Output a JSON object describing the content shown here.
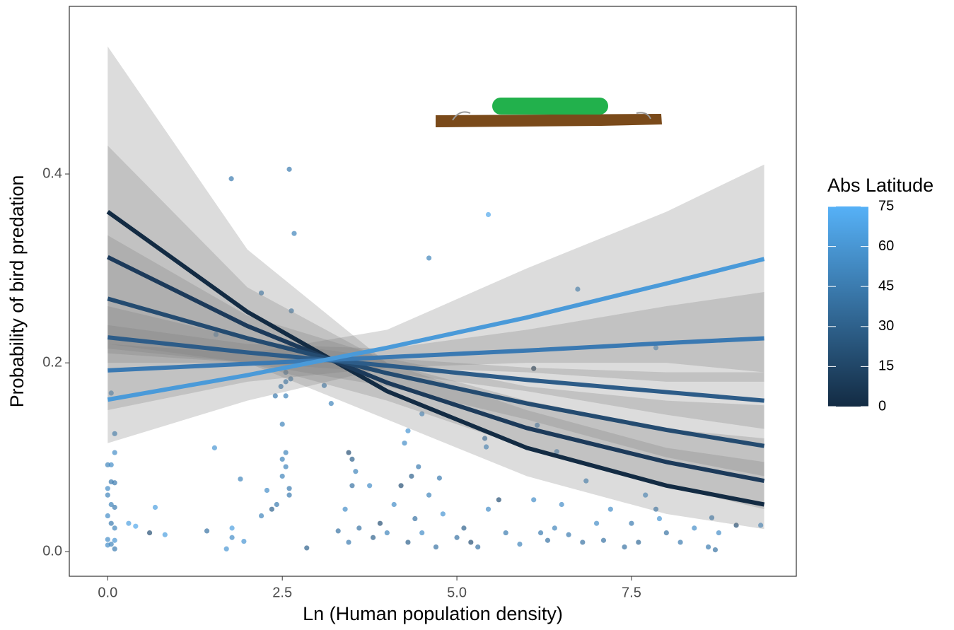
{
  "chart_data": {
    "type": "scatter",
    "x_label": "Ln (Human population density)",
    "y_label": "Probability of bird predation",
    "xlim": [
      -0.55,
      9.86
    ],
    "xticks": [
      {
        "value": 0,
        "label": "0.0"
      },
      2.5,
      {
        "value": 5,
        "label": "5.0"
      },
      7.5
    ],
    "ylim": [
      -0.026,
      0.5775
    ],
    "yticks": [
      {
        "value": 0,
        "label": "0.0"
      },
      0.2,
      0.4
    ],
    "color_scale": {
      "title": "Abs Latitude",
      "low": "#132B43",
      "high": "#56B1F7",
      "lim": [
        0,
        75
      ],
      "ticks": [
        0,
        15,
        30,
        45,
        60,
        75
      ]
    },
    "line_x": [
      0,
      2,
      4,
      6,
      8,
      9.4
    ],
    "lines": [
      {
        "color": "#132B43",
        "values": [
          0.36,
          0.254,
          0.17,
          0.11,
          0.07,
          0.05
        ],
        "lower": [
          0.22,
          0.2,
          0.14,
          0.08,
          0.04,
          0.024
        ],
        "upper": [
          0.535,
          0.32,
          0.2,
          0.15,
          0.11,
          0.095
        ]
      },
      {
        "color": "#1c3a5a",
        "values": [
          0.312,
          0.239,
          0.179,
          0.131,
          0.095,
          0.075
        ],
        "lower": [
          0.215,
          0.2,
          0.16,
          0.11,
          0.07,
          0.045
        ],
        "upper": [
          0.43,
          0.28,
          0.2,
          0.16,
          0.13,
          0.12
        ]
      },
      {
        "color": "#244b70",
        "values": [
          0.268,
          0.226,
          0.189,
          0.157,
          0.129,
          0.112
        ],
        "lower": [
          0.21,
          0.2,
          0.175,
          0.14,
          0.1,
          0.08
        ],
        "upper": [
          0.335,
          0.25,
          0.205,
          0.175,
          0.16,
          0.155
        ]
      },
      {
        "color": "#2d5c88",
        "values": [
          0.227,
          0.211,
          0.197,
          0.182,
          0.169,
          0.16
        ],
        "lower": [
          0.2,
          0.2,
          0.19,
          0.17,
          0.145,
          0.13
        ],
        "upper": [
          0.26,
          0.225,
          0.205,
          0.195,
          0.19,
          0.19
        ]
      },
      {
        "color": "#3a79b2",
        "values": [
          0.192,
          0.199,
          0.206,
          0.213,
          0.221,
          0.226
        ],
        "lower": [
          0.15,
          0.18,
          0.195,
          0.19,
          0.18,
          0.18
        ],
        "upper": [
          0.24,
          0.22,
          0.215,
          0.235,
          0.26,
          0.275
        ]
      },
      {
        "color": "#4a9ad9",
        "values": [
          0.161,
          0.187,
          0.216,
          0.248,
          0.284,
          0.31
        ],
        "lower": [
          0.115,
          0.16,
          0.195,
          0.2,
          0.2,
          0.19
        ],
        "upper": [
          0.22,
          0.21,
          0.235,
          0.3,
          0.36,
          0.41
        ]
      }
    ],
    "points": {
      "x": [
        1.77,
        2.6,
        2.67,
        5.45,
        4.6,
        2.2,
        2.63,
        6.73,
        1.55,
        0.05,
        0.1,
        0.1,
        7.85,
        6.1,
        3.1,
        3.2,
        2.55,
        2.55,
        2.55,
        2.4,
        2.48,
        2.62,
        2.5,
        4.5,
        4.3,
        6.15,
        5.4,
        5.42,
        4.25,
        1.53,
        6.43,
        2.55,
        2.5,
        3.45,
        3.5,
        0,
        0.05,
        0.05,
        0.1,
        0,
        0,
        0.05,
        0.1,
        0,
        0.05,
        0.1,
        0,
        0.05,
        0.1,
        0,
        0.1,
        0.3,
        0.4,
        0.6,
        0.68,
        0.82,
        1.42,
        1.7,
        1.78,
        1.78,
        1.9,
        1.95,
        2.2,
        2.28,
        2.35,
        2.42,
        2.5,
        2.6,
        2.6,
        2.55,
        2.85,
        3.3,
        3.4,
        3.45,
        3.5,
        3.55,
        3.6,
        3.75,
        3.8,
        3.9,
        4.0,
        4.1,
        4.2,
        4.3,
        4.35,
        4.4,
        4.45,
        4.5,
        4.6,
        4.7,
        4.75,
        4.8,
        5.0,
        5.1,
        5.2,
        5.3,
        5.45,
        5.6,
        5.7,
        5.9,
        6.1,
        6.2,
        6.3,
        6.4,
        6.5,
        6.6,
        6.8,
        6.85,
        7.0,
        7.1,
        7.2,
        7.4,
        7.5,
        7.6,
        7.7,
        7.85,
        7.9,
        8.0,
        8.2,
        8.4,
        8.6,
        8.65,
        8.75,
        8.7,
        9.0,
        9.35
      ],
      "y": [
        0.395,
        0.405,
        0.337,
        0.357,
        0.311,
        0.274,
        0.255,
        0.278,
        0.23,
        0.168,
        0.125,
        0.105,
        0.216,
        0.194,
        0.176,
        0.157,
        0.19,
        0.18,
        0.165,
        0.165,
        0.175,
        0.183,
        0.135,
        0.146,
        0.128,
        0.134,
        0.12,
        0.111,
        0.115,
        0.11,
        0.106,
        0.105,
        0.098,
        0.105,
        0.098,
        0.092,
        0.092,
        0.074,
        0.073,
        0.067,
        0.06,
        0.05,
        0.047,
        0.038,
        0.03,
        0.025,
        0.013,
        0.008,
        0.003,
        0.007,
        0.012,
        0.03,
        0.027,
        0.02,
        0.047,
        0.018,
        0.022,
        0.003,
        0.025,
        0.015,
        0.077,
        0.011,
        0.038,
        0.065,
        0.045,
        0.05,
        0.08,
        0.06,
        0.067,
        0.09,
        0.004,
        0.022,
        0.045,
        0.01,
        0.07,
        0.085,
        0.025,
        0.07,
        0.015,
        0.03,
        0.02,
        0.05,
        0.07,
        0.01,
        0.08,
        0.035,
        0.09,
        0.02,
        0.06,
        0.005,
        0.078,
        0.04,
        0.015,
        0.025,
        0.01,
        0.005,
        0.045,
        0.055,
        0.02,
        0.008,
        0.055,
        0.02,
        0.012,
        0.025,
        0.05,
        0.018,
        0.01,
        0.075,
        0.03,
        0.012,
        0.045,
        0.005,
        0.03,
        0.01,
        0.06,
        0.045,
        0.035,
        0.02,
        0.01,
        0.025,
        0.005,
        0.036,
        0.02,
        0.002,
        0.028,
        0.028
      ],
      "lat": [
        45,
        45,
        50,
        70,
        50,
        45,
        45,
        50,
        60,
        55,
        50,
        55,
        60,
        5,
        45,
        50,
        45,
        45,
        50,
        45,
        45,
        45,
        50,
        55,
        60,
        50,
        40,
        55,
        55,
        60,
        55,
        50,
        50,
        20,
        30,
        50,
        55,
        45,
        45,
        55,
        50,
        50,
        45,
        55,
        45,
        50,
        55,
        50,
        45,
        55,
        60,
        65,
        70,
        20,
        65,
        65,
        40,
        60,
        65,
        55,
        50,
        60,
        50,
        55,
        30,
        45,
        50,
        45,
        45,
        50,
        30,
        40,
        55,
        45,
        40,
        50,
        40,
        55,
        30,
        20,
        50,
        55,
        20,
        30,
        30,
        40,
        45,
        55,
        50,
        40,
        45,
        60,
        40,
        30,
        20,
        40,
        55,
        20,
        45,
        50,
        55,
        45,
        40,
        50,
        55,
        45,
        40,
        50,
        55,
        40,
        55,
        40,
        45,
        35,
        55,
        45,
        60,
        40,
        45,
        55,
        45,
        45,
        55,
        40,
        20,
        55
      ]
    }
  }
}
